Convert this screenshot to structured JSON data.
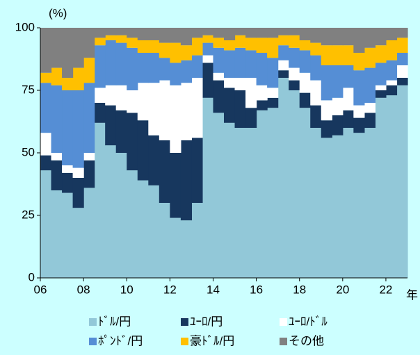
{
  "chart_data": {
    "type": "stacked_step_area",
    "y_unit_label": "(%)",
    "x_unit_label": "年",
    "x": [
      2006,
      2006.5,
      2007,
      2007.5,
      2008,
      2008.5,
      2009,
      2009.5,
      2010,
      2010.5,
      2011,
      2011.5,
      2012,
      2012.5,
      2013,
      2013.5,
      2014,
      2014.5,
      2015,
      2015.5,
      2016,
      2016.5,
      2017,
      2017.5,
      2018,
      2018.5,
      2019,
      2019.5,
      2020,
      2020.5,
      2021,
      2021.5,
      2022,
      2022.5
    ],
    "series": [
      {
        "name": "ﾄﾞﾙ/円",
        "color": "#92c8d8",
        "values": [
          43,
          35,
          34,
          28,
          36,
          62,
          53,
          50,
          43,
          39,
          37,
          30,
          24,
          23,
          30,
          72,
          66,
          62,
          60,
          60,
          67,
          68,
          80,
          75,
          68,
          60,
          56,
          57,
          60,
          58,
          60,
          72,
          73,
          77
        ]
      },
      {
        "name": "ﾕｰﾛ/円",
        "color": "#17375e",
        "values": [
          6,
          12,
          8,
          12,
          11,
          8,
          16,
          17,
          23,
          24,
          20,
          25,
          26,
          32,
          26,
          14,
          13,
          14,
          15,
          8,
          4,
          4,
          3,
          4,
          6,
          9,
          7,
          8,
          7,
          6,
          6,
          3,
          4,
          3
        ]
      },
      {
        "name": "ﾕｰﾛ/ﾄﾞﾙ",
        "color": "#ffffff",
        "values": [
          9,
          3,
          3,
          4,
          3,
          6,
          8,
          10,
          9,
          15,
          21,
          24,
          27,
          23,
          24,
          3,
          3,
          4,
          5,
          12,
          6,
          4,
          4,
          5,
          8,
          10,
          8,
          7,
          9,
          5,
          4,
          2,
          2,
          5
        ]
      },
      {
        "name": "ﾎﾟﾝﾄﾞ/円",
        "color": "#558ed5",
        "values": [
          20,
          27,
          30,
          31,
          28,
          17,
          18,
          17,
          17,
          12,
          12,
          9,
          9,
          9,
          9,
          5,
          10,
          11,
          12,
          11,
          13,
          12,
          6,
          8,
          9,
          10,
          14,
          13,
          9,
          14,
          14,
          9,
          8,
          5
        ]
      },
      {
        "name": "豪ﾄﾞﾙ/円",
        "color": "#ffc000",
        "values": [
          4,
          7,
          5,
          9,
          10,
          3,
          2,
          3,
          4,
          5,
          5,
          6,
          8,
          6,
          7,
          3,
          4,
          4,
          5,
          5,
          6,
          8,
          4,
          5,
          4,
          5,
          8,
          8,
          8,
          7,
          8,
          7,
          8,
          6
        ]
      },
      {
        "name": "その他",
        "color": "#808080",
        "values": [
          18,
          16,
          20,
          16,
          12,
          4,
          3,
          3,
          4,
          5,
          5,
          6,
          6,
          7,
          4,
          3,
          4,
          5,
          3,
          4,
          4,
          4,
          3,
          3,
          5,
          6,
          7,
          7,
          7,
          10,
          8,
          7,
          5,
          4
        ]
      }
    ],
    "xlim": [
      2006,
      2023
    ],
    "xticks": [
      {
        "value": 2006,
        "label": "06"
      },
      {
        "value": 2008,
        "label": "08"
      },
      {
        "value": 2010,
        "label": "10"
      },
      {
        "value": 2012,
        "label": "12"
      },
      {
        "value": 2014,
        "label": "14"
      },
      {
        "value": 2016,
        "label": "16"
      },
      {
        "value": 2018,
        "label": "18"
      },
      {
        "value": 2020,
        "label": "20"
      },
      {
        "value": 2022,
        "label": "22"
      }
    ],
    "ylim": [
      0,
      100
    ],
    "yticks": [
      0,
      25,
      50,
      75,
      100
    ]
  }
}
